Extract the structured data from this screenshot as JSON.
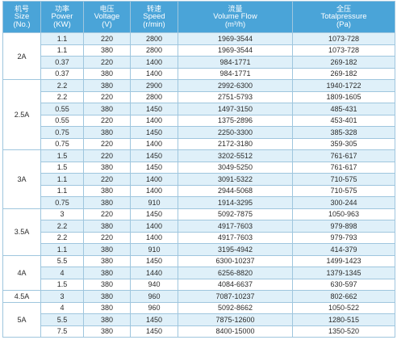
{
  "header": [
    {
      "cn": "机号",
      "en1": "Size",
      "en2": "(No.)"
    },
    {
      "cn": "功率",
      "en1": "Power",
      "en2": "(KW)"
    },
    {
      "cn": "电压",
      "en1": "Voltage",
      "en2": "(V)"
    },
    {
      "cn": "转速",
      "en1": "Speed",
      "en2": "(r/min)"
    },
    {
      "cn": "流量",
      "en1": "Volume Flow",
      "en2": "(m³/h)"
    },
    {
      "cn": "全压",
      "en1": "Totalpressure",
      "en2": "(Pa)"
    }
  ],
  "groups": [
    {
      "size": "2A",
      "rows": [
        [
          "1.1",
          "220",
          "2800",
          "1969-3544",
          "1073-728"
        ],
        [
          "1.1",
          "380",
          "2800",
          "1969-3544",
          "1073-728"
        ],
        [
          "0.37",
          "220",
          "1400",
          "984-1771",
          "269-182"
        ],
        [
          "0.37",
          "380",
          "1400",
          "984-1771",
          "269-182"
        ]
      ]
    },
    {
      "size": "2.5A",
      "rows": [
        [
          "2.2",
          "380",
          "2900",
          "2992-6300",
          "1940-1722"
        ],
        [
          "2.2",
          "220",
          "2800",
          "2751-5793",
          "1809-1605"
        ],
        [
          "0.55",
          "380",
          "1450",
          "1497-3150",
          "485-431"
        ],
        [
          "0.55",
          "220",
          "1400",
          "1375-2896",
          "453-401"
        ],
        [
          "0.75",
          "380",
          "1450",
          "2250-3300",
          "385-328"
        ],
        [
          "0.75",
          "220",
          "1400",
          "2172-3180",
          "359-305"
        ]
      ]
    },
    {
      "size": "3A",
      "rows": [
        [
          "1.5",
          "220",
          "1450",
          "3202-5512",
          "761-617"
        ],
        [
          "1.5",
          "380",
          "1450",
          "3049-5250",
          "761-617"
        ],
        [
          "1.1",
          "220",
          "1400",
          "3091-5322",
          "710-575"
        ],
        [
          "1.1",
          "380",
          "1400",
          "2944-5068",
          "710-575"
        ],
        [
          "0.75",
          "380",
          "910",
          "1914-3295",
          "300-244"
        ]
      ]
    },
    {
      "size": "3.5A",
      "rows": [
        [
          "3",
          "220",
          "1450",
          "5092-7875",
          "1050-963"
        ],
        [
          "2.2",
          "380",
          "1400",
          "4917-7603",
          "979-898"
        ],
        [
          "2.2",
          "220",
          "1400",
          "4917-7603",
          "979-793"
        ],
        [
          "1.1",
          "380",
          "910",
          "3195-4942",
          "414-379"
        ]
      ]
    },
    {
      "size": "4A",
      "rows": [
        [
          "5.5",
          "380",
          "1450",
          "6300-10237",
          "1499-1423"
        ],
        [
          "4",
          "380",
          "1440",
          "6256-8820",
          "1379-1345"
        ],
        [
          "1.5",
          "380",
          "940",
          "4084-6637",
          "630-597"
        ]
      ]
    },
    {
      "size": "4.5A",
      "rows": [
        [
          "3",
          "380",
          "960",
          "7087-10237",
          "802-662"
        ]
      ]
    },
    {
      "size": "5A",
      "rows": [
        [
          "4",
          "380",
          "960",
          "5092-8662",
          "1050-522"
        ],
        [
          "5.5",
          "380",
          "1450",
          "7875-12600",
          "1280-515"
        ],
        [
          "7.5",
          "380",
          "1450",
          "8400-15000",
          "1350-520"
        ]
      ]
    }
  ],
  "colors": {
    "header_bg": "#4aa4d8",
    "header_text": "#ffffff",
    "stripe": "#dff0f9",
    "border": "#9fc6de"
  }
}
